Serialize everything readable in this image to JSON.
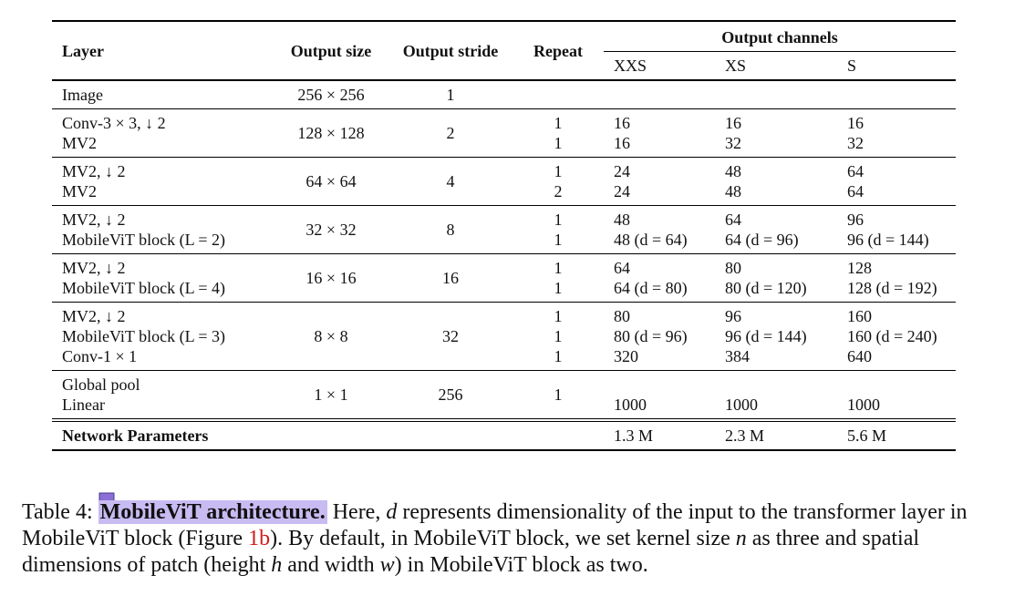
{
  "table": {
    "headers": {
      "layer": "Layer",
      "output_size": "Output size",
      "output_stride": "Output stride",
      "repeat": "Repeat",
      "output_channels": "Output channels",
      "variants": [
        "XXS",
        "XS",
        "S"
      ]
    },
    "groups": [
      {
        "layers": [
          "Image"
        ],
        "output_size": "256 × 256",
        "output_stride": "1",
        "repeats": [
          ""
        ],
        "xxs": [
          ""
        ],
        "xs": [
          ""
        ],
        "s": [
          ""
        ]
      },
      {
        "layers": [
          "Conv-3 × 3, ↓ 2",
          "MV2"
        ],
        "output_size": "128 × 128",
        "output_stride": "2",
        "repeats": [
          "1",
          "1"
        ],
        "xxs": [
          "16",
          "16"
        ],
        "xs": [
          "16",
          "32"
        ],
        "s": [
          "16",
          "32"
        ]
      },
      {
        "layers": [
          "MV2, ↓ 2",
          "MV2"
        ],
        "output_size": "64 × 64",
        "output_stride": "4",
        "repeats": [
          "1",
          "2"
        ],
        "xxs": [
          "24",
          "24"
        ],
        "xs": [
          "48",
          "48"
        ],
        "s": [
          "64",
          "64"
        ]
      },
      {
        "layers": [
          "MV2, ↓ 2",
          "MobileViT block (L = 2)"
        ],
        "output_size": "32 × 32",
        "output_stride": "8",
        "repeats": [
          "1",
          "1"
        ],
        "xxs": [
          "48",
          "48 (d = 64)"
        ],
        "xs": [
          "64",
          "64 (d = 96)"
        ],
        "s": [
          "96",
          "96 (d = 144)"
        ]
      },
      {
        "layers": [
          "MV2, ↓ 2",
          "MobileViT block (L = 4)"
        ],
        "output_size": "16 × 16",
        "output_stride": "16",
        "repeats": [
          "1",
          "1"
        ],
        "xxs": [
          "64",
          "64 (d = 80)"
        ],
        "xs": [
          "80",
          "80 (d = 120)"
        ],
        "s": [
          "128",
          "128 (d = 192)"
        ]
      },
      {
        "layers": [
          "MV2, ↓ 2",
          "MobileViT block (L = 3)",
          "Conv-1 × 1"
        ],
        "output_size": "8 × 8",
        "output_stride": "32",
        "repeats": [
          "1",
          "1",
          "1"
        ],
        "xxs": [
          "80",
          "80 (d = 96)",
          "320"
        ],
        "xs": [
          "96",
          "96 (d = 144)",
          "384"
        ],
        "s": [
          "160",
          "160 (d = 240)",
          "640"
        ]
      },
      {
        "layers": [
          "Global pool",
          "Linear"
        ],
        "output_size": "1 × 1",
        "output_stride": "256",
        "repeats": [
          "1"
        ],
        "xxs": [
          "",
          "1000"
        ],
        "xs": [
          "",
          "1000"
        ],
        "s": [
          "",
          "1000"
        ]
      }
    ],
    "footer": {
      "label": "Network Parameters",
      "xxs": "1.3 M",
      "xs": "2.3 M",
      "s": "5.6 M"
    }
  },
  "caption": {
    "prefix": "Table 4: ",
    "title": "MobileViT architecture.",
    "t1": " Here, ",
    "v_d": "d",
    "t2": " represents dimensionality of the input to the transformer layer in MobileViT block (Figure ",
    "ref": "1b",
    "t3": "). By default, in MobileViT block, we set kernel size ",
    "v_n": "n",
    "t4": " as three and spatial dimensions of patch (height ",
    "v_h": "h",
    "t5": " and width ",
    "v_w": "w",
    "t6": ") in MobileViT block as two."
  },
  "icons": {
    "annotation": "note-annotation-icon",
    "annotation_color": "#8b6fd6"
  }
}
